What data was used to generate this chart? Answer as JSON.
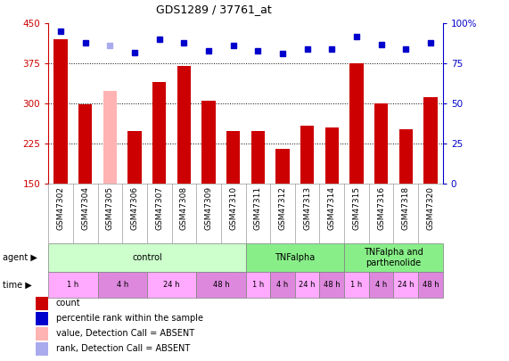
{
  "title": "GDS1289 / 37761_at",
  "samples": [
    "GSM47302",
    "GSM47304",
    "GSM47305",
    "GSM47306",
    "GSM47307",
    "GSM47308",
    "GSM47309",
    "GSM47310",
    "GSM47311",
    "GSM47312",
    "GSM47313",
    "GSM47314",
    "GSM47315",
    "GSM47316",
    "GSM47318",
    "GSM47320"
  ],
  "counts": [
    420,
    298,
    323,
    248,
    340,
    370,
    305,
    248,
    248,
    215,
    258,
    255,
    375,
    300,
    252,
    312
  ],
  "count_absent": [
    false,
    false,
    true,
    false,
    false,
    false,
    false,
    false,
    false,
    false,
    false,
    false,
    false,
    false,
    false,
    false
  ],
  "percentile_ranks": [
    95,
    88,
    86,
    82,
    90,
    88,
    83,
    86,
    83,
    81,
    84,
    84,
    92,
    87,
    84,
    88
  ],
  "rank_absent": [
    false,
    false,
    true,
    false,
    false,
    false,
    false,
    false,
    false,
    false,
    false,
    false,
    false,
    false,
    false,
    false
  ],
  "ylim_left": [
    150,
    450
  ],
  "ylim_right": [
    0,
    100
  ],
  "yticks_left": [
    150,
    225,
    300,
    375,
    450
  ],
  "yticks_right": [
    0,
    25,
    50,
    75,
    100
  ],
  "bar_color_normal": "#cc0000",
  "bar_color_absent": "#ffb3b3",
  "dot_color_normal": "#0000cc",
  "dot_color_absent": "#aaaaee",
  "agent_groups": [
    {
      "label": "control",
      "start": 0,
      "end": 8,
      "color": "#ccffcc"
    },
    {
      "label": "TNFalpha",
      "start": 8,
      "end": 12,
      "color": "#88ee88"
    },
    {
      "label": "TNFalpha and\nparthenolide",
      "start": 12,
      "end": 16,
      "color": "#88ee88"
    }
  ],
  "time_groups": [
    {
      "label": "1 h",
      "start": 0,
      "end": 2,
      "color": "#ffaaff"
    },
    {
      "label": "4 h",
      "start": 2,
      "end": 4,
      "color": "#dd88dd"
    },
    {
      "label": "24 h",
      "start": 4,
      "end": 6,
      "color": "#ffaaff"
    },
    {
      "label": "48 h",
      "start": 6,
      "end": 8,
      "color": "#dd88dd"
    },
    {
      "label": "1 h",
      "start": 8,
      "end": 9,
      "color": "#ffaaff"
    },
    {
      "label": "4 h",
      "start": 9,
      "end": 10,
      "color": "#dd88dd"
    },
    {
      "label": "24 h",
      "start": 10,
      "end": 11,
      "color": "#ffaaff"
    },
    {
      "label": "48 h",
      "start": 11,
      "end": 12,
      "color": "#dd88dd"
    },
    {
      "label": "1 h",
      "start": 12,
      "end": 13,
      "color": "#ffaaff"
    },
    {
      "label": "4 h",
      "start": 13,
      "end": 14,
      "color": "#dd88dd"
    },
    {
      "label": "24 h",
      "start": 14,
      "end": 15,
      "color": "#ffaaff"
    },
    {
      "label": "48 h",
      "start": 15,
      "end": 16,
      "color": "#dd88dd"
    }
  ],
  "legend_items": [
    {
      "label": "count",
      "color": "#cc0000"
    },
    {
      "label": "percentile rank within the sample",
      "color": "#0000cc"
    },
    {
      "label": "value, Detection Call = ABSENT",
      "color": "#ffb3b3"
    },
    {
      "label": "rank, Detection Call = ABSENT",
      "color": "#aaaaee"
    }
  ]
}
